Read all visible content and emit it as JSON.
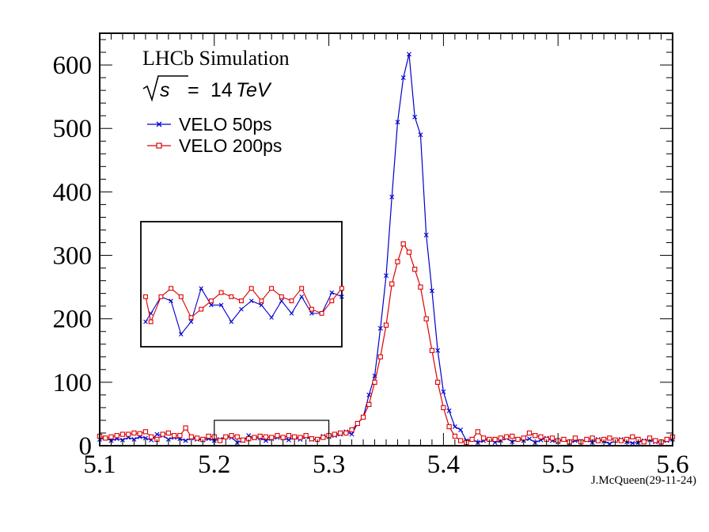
{
  "chart_data": {
    "type": "line",
    "title": "LHCb Simulation",
    "subtitle": "√s = 14 TeV",
    "energy": {
      "prefix": "s",
      "equals": "=",
      "value": "14",
      "unit": "TeV"
    },
    "credit": "J.McQueen(29-11-24)",
    "xlim": [
      5.1,
      5.6
    ],
    "ylim": [
      0,
      650
    ],
    "x_ticks": [
      "5.1",
      "5.2",
      "5.3",
      "5.4",
      "5.5",
      "5.6"
    ],
    "y_ticks": [
      "0",
      "100",
      "200",
      "300",
      "400",
      "500",
      "600"
    ],
    "grid": false,
    "legend_position": "top-left",
    "zoom_box": {
      "xlim": [
        5.2,
        5.3
      ],
      "ylim": [
        0,
        40
      ]
    },
    "series": [
      {
        "name": "VELO 50ps",
        "color": "#0000cc",
        "marker": "cross",
        "x": [
          5.1,
          5.105,
          5.11,
          5.115,
          5.12,
          5.125,
          5.13,
          5.135,
          5.14,
          5.145,
          5.15,
          5.155,
          5.16,
          5.165,
          5.17,
          5.175,
          5.18,
          5.185,
          5.19,
          5.195,
          5.2,
          5.205,
          5.21,
          5.215,
          5.22,
          5.225,
          5.23,
          5.235,
          5.24,
          5.245,
          5.25,
          5.255,
          5.26,
          5.265,
          5.27,
          5.275,
          5.28,
          5.285,
          5.29,
          5.295,
          5.3,
          5.305,
          5.31,
          5.315,
          5.32,
          5.325,
          5.33,
          5.335,
          5.34,
          5.345,
          5.35,
          5.355,
          5.36,
          5.365,
          5.37,
          5.375,
          5.38,
          5.385,
          5.39,
          5.395,
          5.4,
          5.405,
          5.41,
          5.415,
          5.42,
          5.425,
          5.43,
          5.435,
          5.44,
          5.445,
          5.45,
          5.455,
          5.46,
          5.465,
          5.47,
          5.475,
          5.48,
          5.485,
          5.49,
          5.495,
          5.5,
          5.505,
          5.51,
          5.515,
          5.52,
          5.525,
          5.53,
          5.535,
          5.54,
          5.545,
          5.55,
          5.555,
          5.56,
          5.565,
          5.57,
          5.575,
          5.58,
          5.585,
          5.59,
          5.595,
          5.6
        ],
        "values": [
          10,
          12,
          8,
          11,
          9,
          13,
          10,
          14,
          12,
          9,
          18,
          16,
          10,
          13,
          11,
          8,
          12,
          10,
          9,
          11,
          8,
          10,
          14,
          13,
          5,
          8,
          16,
          12,
          12,
          8,
          11,
          13,
          12,
          9,
          13,
          10,
          14,
          10,
          10,
          15,
          14,
          16,
          18,
          22,
          18,
          35,
          45,
          80,
          110,
          185,
          268,
          392,
          510,
          580,
          617,
          518,
          490,
          332,
          244,
          150,
          85,
          55,
          30,
          25,
          8,
          10,
          5,
          8,
          10,
          5,
          8,
          12,
          6,
          10,
          8,
          11,
          5,
          9,
          12,
          8,
          6,
          10,
          4,
          8,
          7,
          9,
          5,
          10,
          7,
          3,
          8,
          10,
          6,
          4,
          5,
          8,
          9,
          6,
          5,
          8,
          10
        ]
      },
      {
        "name": "VELO 200ps",
        "color": "#dd0000",
        "marker": "open-square",
        "x": [
          5.1,
          5.105,
          5.11,
          5.115,
          5.12,
          5.125,
          5.13,
          5.135,
          5.14,
          5.145,
          5.15,
          5.155,
          5.16,
          5.165,
          5.17,
          5.175,
          5.18,
          5.185,
          5.19,
          5.195,
          5.2,
          5.205,
          5.21,
          5.215,
          5.22,
          5.225,
          5.23,
          5.235,
          5.24,
          5.245,
          5.25,
          5.255,
          5.26,
          5.265,
          5.27,
          5.275,
          5.28,
          5.285,
          5.29,
          5.295,
          5.3,
          5.305,
          5.31,
          5.315,
          5.32,
          5.325,
          5.33,
          5.335,
          5.34,
          5.345,
          5.35,
          5.355,
          5.36,
          5.365,
          5.37,
          5.375,
          5.38,
          5.385,
          5.39,
          5.395,
          5.4,
          5.405,
          5.41,
          5.415,
          5.42,
          5.425,
          5.43,
          5.435,
          5.44,
          5.445,
          5.45,
          5.455,
          5.46,
          5.465,
          5.47,
          5.475,
          5.48,
          5.485,
          5.49,
          5.495,
          5.5,
          5.505,
          5.51,
          5.515,
          5.52,
          5.525,
          5.53,
          5.535,
          5.54,
          5.545,
          5.55,
          5.555,
          5.56,
          5.565,
          5.57,
          5.575,
          5.58,
          5.585,
          5.59,
          5.595,
          5.6
        ],
        "values": [
          15,
          12,
          14,
          16,
          18,
          18,
          20,
          19,
          22,
          14,
          10,
          18,
          20,
          16,
          16,
          28,
          14,
          12,
          10,
          15,
          14,
          8,
          14,
          16,
          14,
          9,
          11,
          13,
          15,
          14,
          13,
          16,
          13,
          16,
          14,
          13,
          16,
          11,
          10,
          13,
          16,
          18,
          20,
          20,
          25,
          35,
          45,
          65,
          100,
          140,
          190,
          255,
          290,
          318,
          305,
          278,
          250,
          200,
          150,
          100,
          60,
          30,
          15,
          8,
          5,
          10,
          22,
          12,
          10,
          10,
          12,
          14,
          15,
          10,
          12,
          20,
          16,
          14,
          10,
          12,
          8,
          10,
          6,
          12,
          6,
          10,
          12,
          8,
          10,
          12,
          9,
          8,
          10,
          14,
          10,
          6,
          12,
          8,
          6,
          10,
          14
        ]
      }
    ]
  }
}
